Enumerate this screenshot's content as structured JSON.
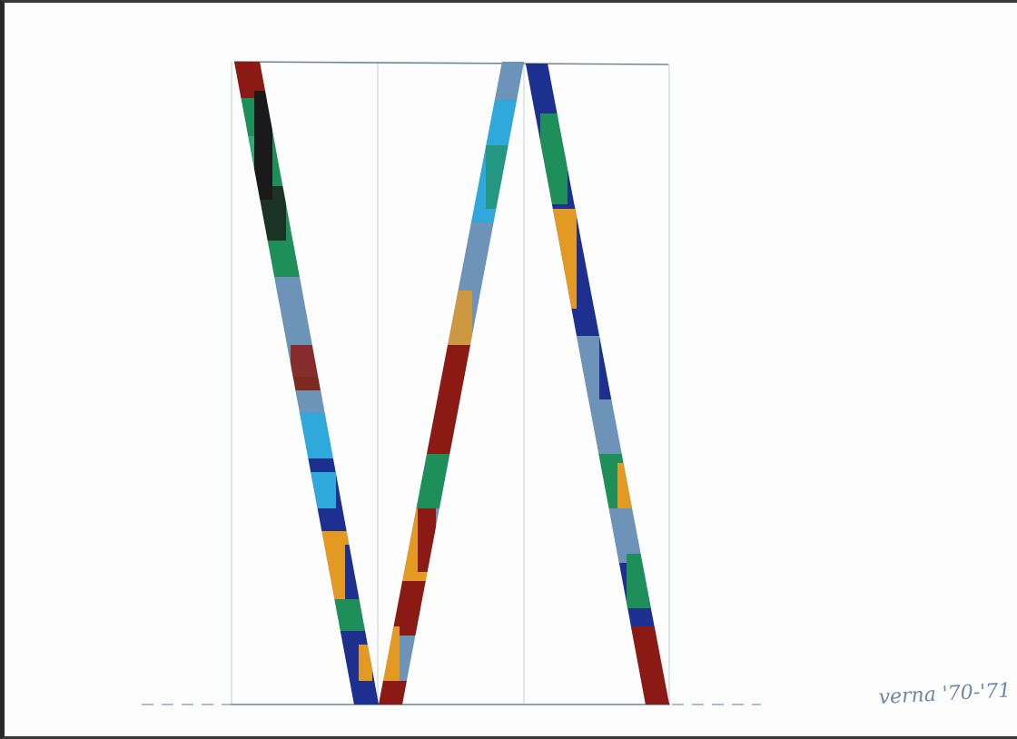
{
  "artwork": {
    "paper_color": "#fcfdfc",
    "frame_color": "#2b2a2a",
    "guide_line_color": "#5b7186",
    "baseline_dash_color": "#8fa8c3",
    "signature": {
      "text": "verna '70-'71",
      "ink_color": "#6d87a8"
    }
  },
  "palette": {
    "green": "#1f8f5a",
    "dark_red": "#8c1a14",
    "navy": "#1d2f8f",
    "sky_blue": "#2fa8dc",
    "grey_blue": "#6e93b8",
    "orange": "#e49a22",
    "black": "#1a1a1a",
    "light_grey": "#c4ced8"
  },
  "stripes": [
    {
      "name": "left-descending",
      "colors_top_to_bottom": [
        "dark_red",
        "black",
        "green",
        "green",
        "grey_blue",
        "sky_blue",
        "navy",
        "orange",
        "navy"
      ]
    },
    {
      "name": "center-ascending",
      "colors_top_to_bottom": [
        "grey_blue",
        "sky_blue",
        "grey_blue",
        "dark_red",
        "dark_red",
        "orange",
        "green",
        "dark_red"
      ]
    },
    {
      "name": "right-descending",
      "colors_top_to_bottom": [
        "navy",
        "green",
        "orange",
        "navy",
        "grey_blue",
        "green",
        "orange",
        "dark_red"
      ]
    }
  ]
}
